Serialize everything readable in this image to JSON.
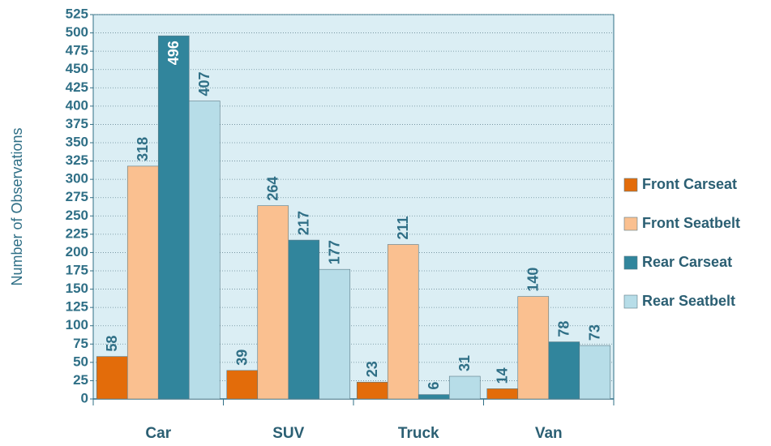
{
  "chart_data": {
    "type": "bar",
    "y_label": "Number of Observations",
    "categories": [
      "Car",
      "SUV",
      "Truck",
      "Van"
    ],
    "series": [
      {
        "name": "Front Carseat",
        "color": "#e36c0a",
        "values": [
          58,
          39,
          23,
          14
        ]
      },
      {
        "name": "Front Seatbelt",
        "color": "#fac090",
        "values": [
          318,
          264,
          211,
          140
        ]
      },
      {
        "name": "Rear Carseat",
        "color": "#31859c",
        "values": [
          496,
          217,
          6,
          78
        ]
      },
      {
        "name": "Rear Seatbelt",
        "color": "#b7dde8",
        "values": [
          407,
          177,
          31,
          73
        ]
      }
    ],
    "ylim": [
      0,
      525
    ],
    "yticks": [
      0,
      25,
      50,
      75,
      100,
      125,
      150,
      175,
      200,
      225,
      250,
      275,
      300,
      325,
      350,
      375,
      400,
      425,
      450,
      475,
      500,
      525
    ],
    "grid": true,
    "legend": "right"
  }
}
